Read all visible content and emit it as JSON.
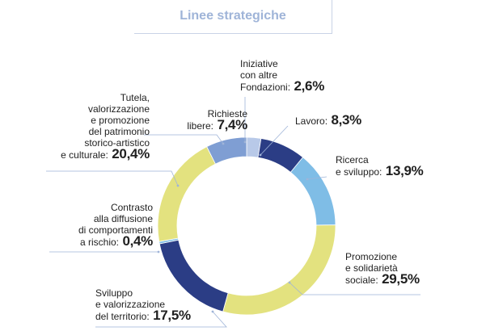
{
  "title": "Linee strategiche",
  "chart_data": {
    "type": "pie",
    "style": "donut",
    "slices": [
      {
        "label_lines": [
          "Iniziative",
          "con altre",
          "Fondazioni:"
        ],
        "value": 2.6,
        "value_text": "2,6%",
        "color": "#b8c9e8"
      },
      {
        "label_lines": [
          "Lavoro:"
        ],
        "value": 8.3,
        "value_text": "8,3%",
        "color": "#2b3d85"
      },
      {
        "label_lines": [
          "Ricerca",
          "e sviluppo:"
        ],
        "value": 13.9,
        "value_text": "13,9%",
        "color": "#7fbde6"
      },
      {
        "label_lines": [
          "Promozione",
          "e solidarietà",
          "sociale:"
        ],
        "value": 29.5,
        "value_text": "29,5%",
        "color": "#e3e27f"
      },
      {
        "label_lines": [
          "Sviluppo",
          "e valorizzazione",
          "del territorio:"
        ],
        "value": 17.5,
        "value_text": "17,5%",
        "color": "#2b3d85"
      },
      {
        "label_lines": [
          "Contrasto",
          "alla diffusione",
          "di comportamenti",
          "a rischio:"
        ],
        "value": 0.4,
        "value_text": "0,4%",
        "color": "#7fbde6"
      },
      {
        "label_lines": [
          "Tutela,",
          "valorizzazione",
          "e promozione",
          "del patrimonio",
          "storico-artistico",
          "e culturale:"
        ],
        "value": 20.4,
        "value_text": "20,4%",
        "color": "#e3e27f"
      },
      {
        "label_lines": [
          "Richieste",
          "libere:"
        ],
        "value": 7.4,
        "value_text": "7,4%",
        "color": "#7f9ed3"
      }
    ],
    "legend": "none"
  }
}
